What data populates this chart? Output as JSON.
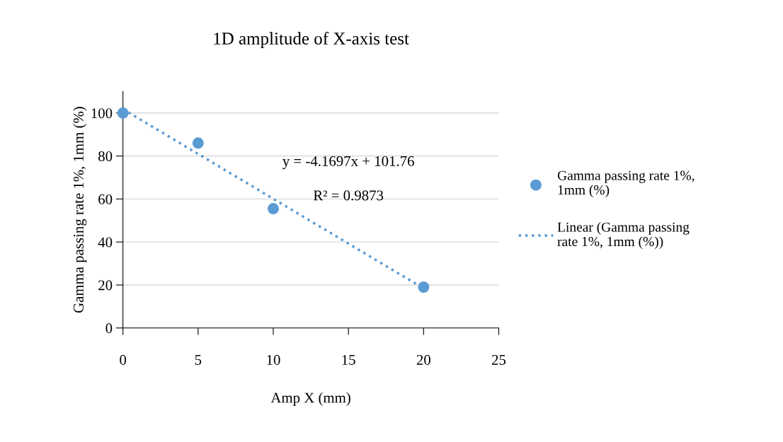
{
  "chart_data": {
    "type": "scatter",
    "title": "1D amplitude of X-axis test",
    "xlabel": "Amp X (mm)",
    "ylabel": "Gamma passing rate 1%, 1mm (%)",
    "series": [
      {
        "name": "Gamma passing rate 1%, 1mm (%)",
        "color": "#5b9bd5",
        "x": [
          0,
          5,
          10,
          20
        ],
        "values": [
          100,
          86,
          55.5,
          19
        ],
        "marker": "circle"
      },
      {
        "name": "Linear (Gamma passing rate 1%, 1mm (%))",
        "type": "line",
        "color": "#5b9bd5",
        "x": [
          0,
          20
        ],
        "values": [
          101.8,
          18.4
        ],
        "line_style": "dotted",
        "marker": "none"
      }
    ],
    "annotations": [
      "y = -4.1697x + 101.76",
      "R² = 0.9873"
    ],
    "xlim": [
      0,
      25
    ],
    "xticks": [
      0,
      5,
      10,
      15,
      20,
      25
    ],
    "ylim": [
      0,
      110
    ],
    "yticks": [
      0,
      20,
      40,
      60,
      80,
      100
    ],
    "grid": "y",
    "legend": "right"
  }
}
